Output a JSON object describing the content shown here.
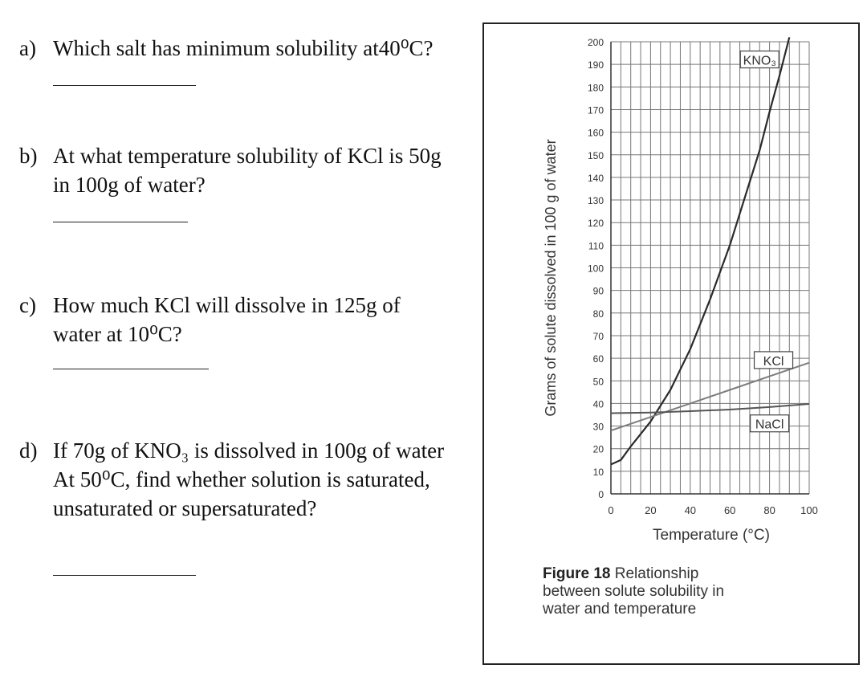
{
  "questions": [
    {
      "letter": "a)",
      "lines": [
        "Which salt has minimum solubility at40⁰C?"
      ]
    },
    {
      "letter": "b)",
      "lines": [
        "At what temperature solubility of KCl is 50g",
        "in 100g of water?"
      ]
    },
    {
      "letter": "c)",
      "lines": [
        "How much KCl will dissolve in 125g of",
        "water at 10⁰C?"
      ]
    },
    {
      "letter": "d)",
      "lines": [
        "If 70g of KNO₃ is dissolved in 100g of water",
        "At 50⁰C, find whether solution is saturated,",
        "unsaturated or supersaturated?"
      ]
    }
  ],
  "figure": {
    "caption_label": "Figure 18",
    "caption_text": "Relationship",
    "caption_line2": "between solute solubility in",
    "caption_line3": "water and temperature"
  },
  "chart_data": {
    "type": "line",
    "title": "",
    "xlabel": "Temperature (°C)",
    "ylabel": "Grams of solute dissolved in 100 g of water",
    "xlim": [
      0,
      100
    ],
    "ylim": [
      0,
      200
    ],
    "xticks": [
      "0",
      "20",
      "40",
      "60",
      "80",
      "100"
    ],
    "yticks": [
      "0",
      "10",
      "20",
      "30",
      "40",
      "50",
      "60",
      "70",
      "80",
      "90",
      "100",
      "110",
      "120",
      "130",
      "140",
      "150",
      "160",
      "170",
      "180",
      "190",
      "200"
    ],
    "grid": true,
    "series": [
      {
        "name": "KNO₃",
        "x": [
          0,
          5,
          10,
          20,
          30,
          40,
          50,
          60,
          70,
          75,
          80,
          85,
          90
        ],
        "y": [
          13,
          15,
          21,
          32,
          46,
          64,
          86,
          110,
          138,
          152,
          169,
          185,
          202
        ]
      },
      {
        "name": "KCl",
        "x": [
          0,
          20,
          40,
          60,
          80,
          100
        ],
        "y": [
          28,
          34,
          40,
          46,
          52,
          58
        ]
      },
      {
        "name": "NaCl",
        "x": [
          0,
          20,
          40,
          60,
          80,
          100
        ],
        "y": [
          35.7,
          36,
          36.6,
          37.3,
          38.4,
          39.8
        ]
      }
    ],
    "annotations": [
      "KNO₃",
      "KCl",
      "NaCl"
    ]
  }
}
